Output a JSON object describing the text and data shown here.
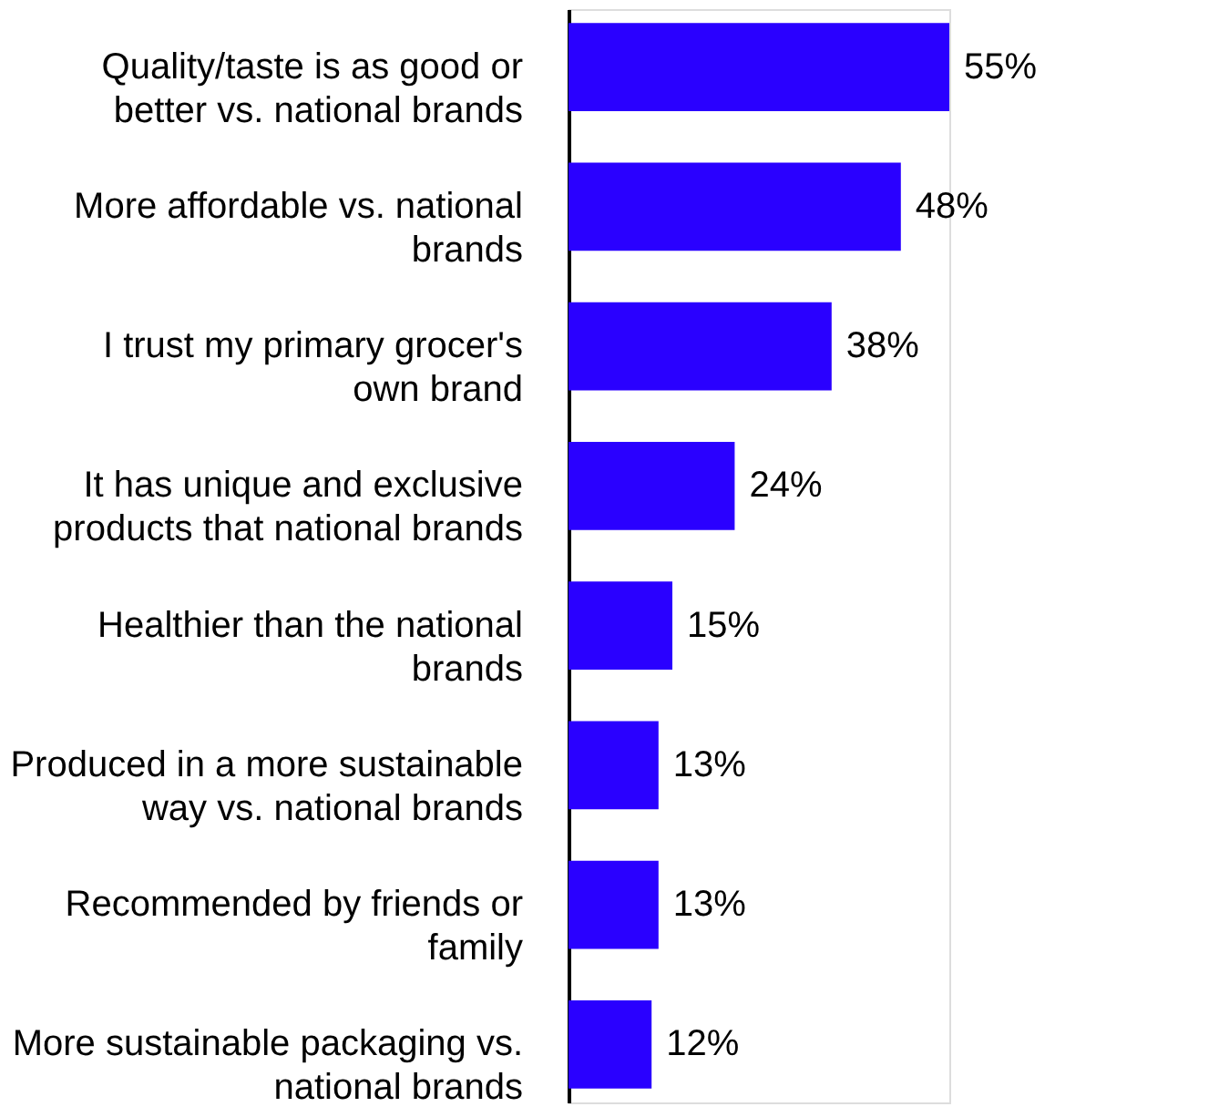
{
  "chart_data": {
    "type": "bar",
    "orientation": "horizontal",
    "categories": [
      "Quality/taste is as good or better vs. national brands",
      "More affordable vs. national brands",
      "I trust my primary grocer's own brand",
      "It has unique and exclusive products that national brands",
      "Healthier than the national brands",
      "Produced in a more sustainable way vs. national brands",
      "Recommended by friends or family",
      "More sustainable packaging vs. national brands"
    ],
    "values": [
      55,
      48,
      38,
      24,
      15,
      13,
      13,
      12
    ],
    "value_labels": [
      "55%",
      "48%",
      "38%",
      "24%",
      "15%",
      "13%",
      "13%",
      "12%"
    ],
    "color": "#2a00ff"
  }
}
